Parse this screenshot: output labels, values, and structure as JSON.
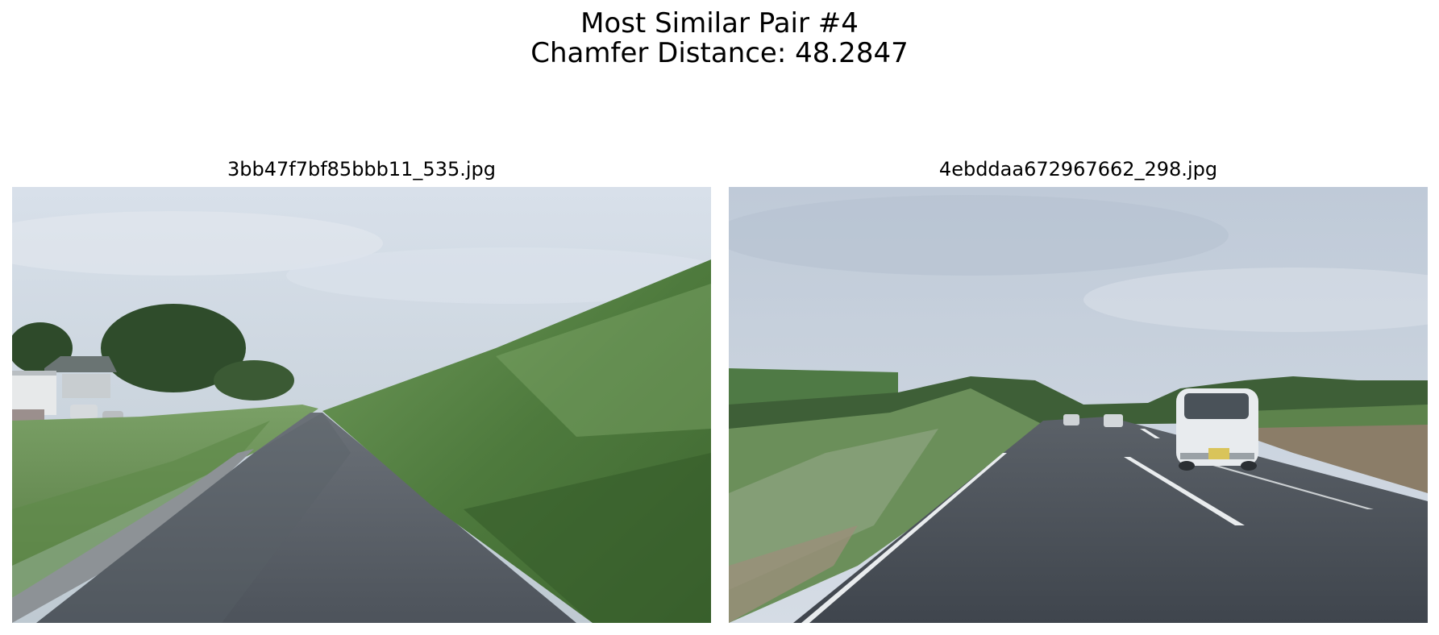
{
  "figure": {
    "title_line1": "Most Similar Pair #4",
    "title_line2": "Chamfer Distance: 48.2847"
  },
  "images": [
    {
      "filename": "3bb47f7bf85bbb11_535.jpg",
      "scene": "narrow rural road beside grassy embankment under overcast sky"
    },
    {
      "filename": "4ebddaa672967662_298.jpg",
      "scene": "two-lane road with white van and cars under overcast sky"
    }
  ]
}
